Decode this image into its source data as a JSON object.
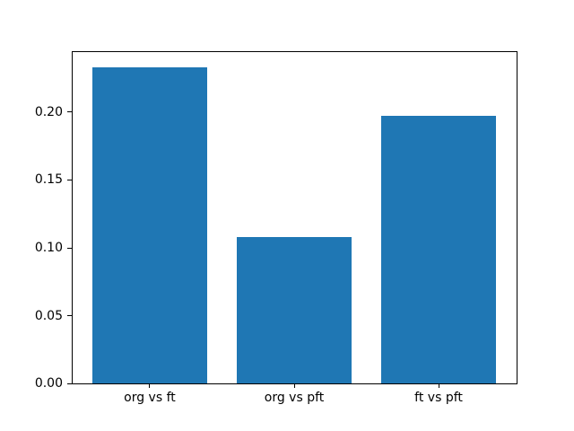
{
  "figure": {
    "background": "#ffffff"
  },
  "chart_data": {
    "type": "bar",
    "title": "",
    "xlabel": "",
    "ylabel": "",
    "categories": [
      "org vs ft",
      "org vs pft",
      "ft vs pft"
    ],
    "values": [
      0.233,
      0.108,
      0.197
    ],
    "bar_color": "#1f77b4",
    "ytick_labels": [
      "0.00",
      "0.05",
      "0.10",
      "0.15",
      "0.20"
    ],
    "ytick_values": [
      0.0,
      0.05,
      0.1,
      0.15,
      0.2
    ],
    "ylim": [
      0,
      0.2445
    ],
    "grid": false,
    "legend": null,
    "axis_color": "#000000",
    "text_color": "#000000"
  }
}
